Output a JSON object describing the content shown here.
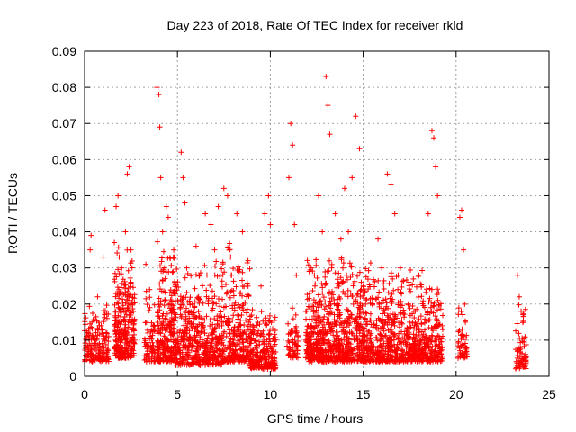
{
  "chart_data": {
    "type": "scatter",
    "title": "Day 223 of 2018, Rate Of TEC Index for receiver rkld",
    "xlabel": "GPS time / hours",
    "ylabel": "ROTI / TECUs",
    "xlim": [
      0,
      25
    ],
    "ylim": [
      0,
      0.09
    ],
    "xticks": [
      "0",
      "5",
      "10",
      "15",
      "20",
      "25"
    ],
    "yticks": [
      "0",
      "0.01",
      "0.02",
      "0.03",
      "0.04",
      "0.05",
      "0.06",
      "0.07",
      "0.08",
      "0.09"
    ],
    "grid": true,
    "marker": "+",
    "color": "#ff0000",
    "series": [
      {
        "points": [
          [
            0.1,
            0.008
          ],
          [
            0.2,
            0.012
          ],
          [
            0.3,
            0.035
          ],
          [
            0.35,
            0.039
          ],
          [
            0.4,
            0.015
          ],
          [
            0.5,
            0.006
          ],
          [
            0.6,
            0.01
          ],
          [
            0.7,
            0.022
          ],
          [
            0.8,
            0.009
          ],
          [
            0.9,
            0.014
          ],
          [
            1.0,
            0.033
          ],
          [
            1.1,
            0.046
          ],
          [
            1.2,
            0.007
          ],
          [
            1.3,
            0.011
          ],
          [
            1.7,
            0.047
          ],
          [
            1.8,
            0.05
          ],
          [
            1.9,
            0.018
          ],
          [
            2.0,
            0.03
          ],
          [
            2.1,
            0.012
          ],
          [
            2.2,
            0.04
          ],
          [
            2.3,
            0.056
          ],
          [
            2.4,
            0.058
          ],
          [
            2.5,
            0.035
          ],
          [
            2.6,
            0.02
          ],
          [
            2.7,
            0.01
          ],
          [
            3.3,
            0.031
          ],
          [
            3.4,
            0.012
          ],
          [
            3.5,
            0.024
          ],
          [
            3.6,
            0.008
          ],
          [
            3.9,
            0.08
          ],
          [
            4.0,
            0.078
          ],
          [
            4.05,
            0.069
          ],
          [
            4.1,
            0.055
          ],
          [
            4.2,
            0.04
          ],
          [
            4.3,
            0.03
          ],
          [
            4.4,
            0.047
          ],
          [
            4.5,
            0.044
          ],
          [
            4.6,
            0.02
          ],
          [
            4.7,
            0.012
          ],
          [
            4.8,
            0.035
          ],
          [
            5.0,
            0.01
          ],
          [
            5.2,
            0.062
          ],
          [
            5.3,
            0.055
          ],
          [
            5.4,
            0.048
          ],
          [
            5.5,
            0.03
          ],
          [
            5.6,
            0.008
          ],
          [
            5.8,
            0.02
          ],
          [
            6.0,
            0.036
          ],
          [
            6.5,
            0.045
          ],
          [
            6.8,
            0.042
          ],
          [
            7.0,
            0.035
          ],
          [
            7.2,
            0.047
          ],
          [
            7.5,
            0.052
          ],
          [
            7.7,
            0.05
          ],
          [
            7.9,
            0.028
          ],
          [
            8.2,
            0.045
          ],
          [
            8.5,
            0.04
          ],
          [
            8.8,
            0.032
          ],
          [
            9.0,
            0.012
          ],
          [
            9.2,
            0.008
          ],
          [
            9.5,
            0.025
          ],
          [
            9.7,
            0.045
          ],
          [
            9.9,
            0.05
          ],
          [
            10.0,
            0.042
          ],
          [
            10.2,
            0.01
          ],
          [
            11.0,
            0.055
          ],
          [
            11.1,
            0.07
          ],
          [
            11.2,
            0.064
          ],
          [
            11.3,
            0.042
          ],
          [
            11.4,
            0.028
          ],
          [
            12.0,
            0.01
          ],
          [
            12.2,
            0.03
          ],
          [
            12.4,
            0.025
          ],
          [
            12.6,
            0.05
          ],
          [
            12.8,
            0.04
          ],
          [
            13.0,
            0.083
          ],
          [
            13.1,
            0.075
          ],
          [
            13.2,
            0.067
          ],
          [
            13.3,
            0.03
          ],
          [
            13.5,
            0.045
          ],
          [
            13.8,
            0.038
          ],
          [
            14.0,
            0.052
          ],
          [
            14.2,
            0.04
          ],
          [
            14.4,
            0.055
          ],
          [
            14.6,
            0.072
          ],
          [
            14.8,
            0.063
          ],
          [
            15.0,
            0.025
          ],
          [
            15.5,
            0.02
          ],
          [
            15.8,
            0.038
          ],
          [
            16.0,
            0.03
          ],
          [
            16.3,
            0.056
          ],
          [
            16.5,
            0.053
          ],
          [
            16.7,
            0.045
          ],
          [
            17.0,
            0.03
          ],
          [
            17.5,
            0.015
          ],
          [
            18.0,
            0.028
          ],
          [
            18.5,
            0.045
          ],
          [
            18.7,
            0.068
          ],
          [
            18.8,
            0.066
          ],
          [
            18.9,
            0.058
          ],
          [
            19.0,
            0.05
          ],
          [
            20.2,
            0.044
          ],
          [
            20.3,
            0.046
          ],
          [
            20.4,
            0.035
          ],
          [
            20.5,
            0.015
          ],
          [
            23.3,
            0.028
          ],
          [
            23.4,
            0.022
          ],
          [
            23.5,
            0.018
          ]
        ]
      }
    ],
    "clusters": [
      {
        "x": [
          0.0,
          1.3
        ],
        "y": [
          0.004,
          0.022
        ],
        "n": 170
      },
      {
        "x": [
          1.6,
          2.7
        ],
        "y": [
          0.005,
          0.04
        ],
        "n": 300
      },
      {
        "x": [
          3.2,
          3.8
        ],
        "y": [
          0.004,
          0.028
        ],
        "n": 70
      },
      {
        "x": [
          3.9,
          4.9
        ],
        "y": [
          0.004,
          0.04
        ],
        "n": 260
      },
      {
        "x": [
          4.9,
          7.4
        ],
        "y": [
          0.003,
          0.033
        ],
        "n": 460
      },
      {
        "x": [
          7.4,
          8.9
        ],
        "y": [
          0.004,
          0.038
        ],
        "n": 280
      },
      {
        "x": [
          8.9,
          10.3
        ],
        "y": [
          0.002,
          0.02
        ],
        "n": 260
      },
      {
        "x": [
          10.9,
          11.5
        ],
        "y": [
          0.005,
          0.02
        ],
        "n": 60
      },
      {
        "x": [
          11.9,
          15.3
        ],
        "y": [
          0.004,
          0.035
        ],
        "n": 750
      },
      {
        "x": [
          15.3,
          17.6
        ],
        "y": [
          0.004,
          0.032
        ],
        "n": 420
      },
      {
        "x": [
          17.6,
          19.3
        ],
        "y": [
          0.004,
          0.03
        ],
        "n": 320
      },
      {
        "x": [
          20.1,
          20.6
        ],
        "y": [
          0.005,
          0.022
        ],
        "n": 60
      },
      {
        "x": [
          23.2,
          23.8
        ],
        "y": [
          0.002,
          0.022
        ],
        "n": 70
      }
    ]
  }
}
